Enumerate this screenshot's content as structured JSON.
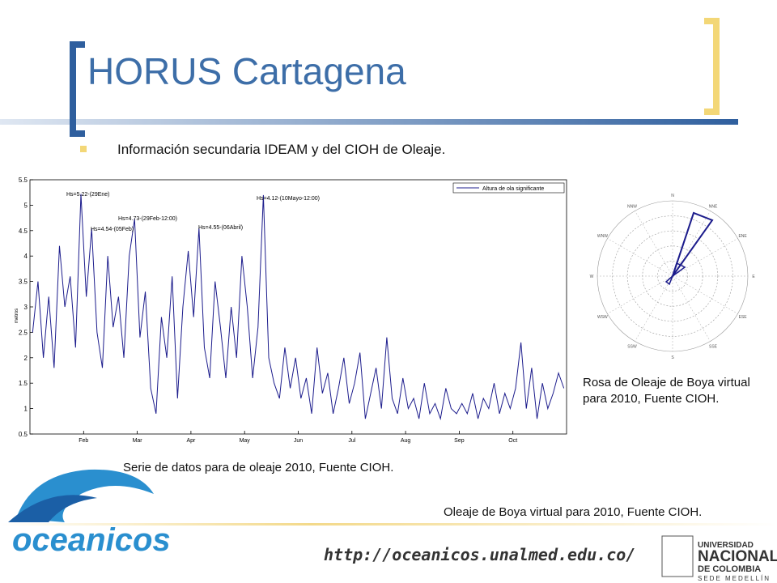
{
  "header": {
    "title": "HORUS Cartagena"
  },
  "bullets": [
    "Información secundaria IDEAM y del CIOH de Oleaje."
  ],
  "timeseries": {
    "y_label": "metros",
    "legend": "Altura de ola significante",
    "ylim": [
      0.5,
      5.5
    ],
    "yticks": [
      0.5,
      1,
      1.5,
      2,
      2.5,
      3,
      3.5,
      4,
      4.5,
      5,
      5.5
    ],
    "months": [
      null,
      "Feb",
      "Mar",
      "Apr",
      "May",
      "Jun",
      "Jul",
      "Aug",
      "Sep",
      "Oct"
    ],
    "annotations": [
      "Hs=5.22-(29Ene)",
      "Hs=4.54-(05Feb)",
      "Hs=4.73-(29Feb-12:00)",
      "Hs=4.55-(06Abril)",
      "Hs=4.12-(10Mayo-12:00)"
    ],
    "color": "#1c1c8c",
    "values": [
      2.5,
      3.5,
      2,
      3.2,
      1.8,
      4.2,
      3,
      3.6,
      2.2,
      5.22,
      3.2,
      4.54,
      2.5,
      1.8,
      4.0,
      2.6,
      3.2,
      2.0,
      4.0,
      4.73,
      2.4,
      3.3,
      1.4,
      0.9,
      2.8,
      2.0,
      3.6,
      1.2,
      3.0,
      4.1,
      2.8,
      4.55,
      2.2,
      1.6,
      3.5,
      2.6,
      1.6,
      3.0,
      2.0,
      4.0,
      3.0,
      1.6,
      2.6,
      5.2,
      2.0,
      1.5,
      1.2,
      2.2,
      1.4,
      2.0,
      1.2,
      1.6,
      0.9,
      2.2,
      1.3,
      1.7,
      0.9,
      1.4,
      2.0,
      1.1,
      1.5,
      2.1,
      0.8,
      1.3,
      1.8,
      1.0,
      2.4,
      1.2,
      0.9,
      1.6,
      1.0,
      1.2,
      0.8,
      1.5,
      0.9,
      1.1,
      0.8,
      1.4,
      1.0,
      0.9,
      1.1,
      0.9,
      1.3,
      0.8,
      1.2,
      1.0,
      1.5,
      0.9,
      1.3,
      1.0,
      1.4,
      2.3,
      1.0,
      1.8,
      0.8,
      1.5,
      1.0,
      1.3,
      1.7,
      1.4
    ]
  },
  "rose": {
    "directions": [
      "N",
      "NNE",
      "ENE",
      "E",
      "ESE",
      "SSE",
      "S",
      "SSW",
      "WSW",
      "W",
      "WNW",
      "NNW"
    ]
  },
  "captions": {
    "rose": "Rosa de Oleaje de Boya virtual para 2010, Fuente CIOH.",
    "series": "Serie de datos para de oleaje 2010, Fuente CIOH.",
    "buoy": "Oleaje de Boya virtual para 2010, Fuente CIOH."
  },
  "footer": {
    "url": "http://oceanicos.unalmed.edu.co/",
    "logo": "oceanicos",
    "university": [
      "UNIVERSIDAD",
      "NACIONAL",
      "DE COLOMBIA",
      "SEDE MEDELLÍN"
    ]
  }
}
